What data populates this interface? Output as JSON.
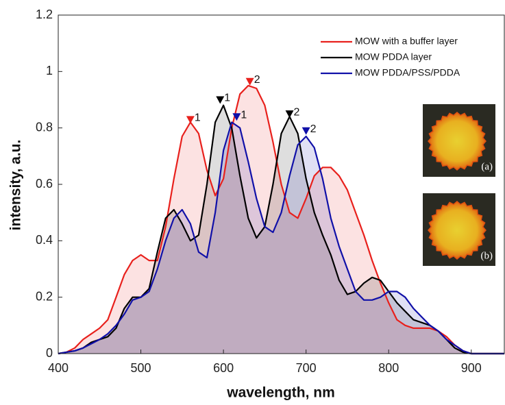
{
  "chart_data": {
    "type": "line",
    "x": [
      400,
      410,
      420,
      430,
      440,
      450,
      460,
      470,
      480,
      490,
      500,
      510,
      520,
      530,
      540,
      550,
      560,
      570,
      580,
      590,
      600,
      610,
      620,
      630,
      640,
      650,
      660,
      670,
      680,
      690,
      700,
      710,
      720,
      730,
      740,
      750,
      760,
      770,
      780,
      790,
      800,
      810,
      820,
      830,
      840,
      850,
      860,
      870,
      880,
      890,
      900,
      910,
      920,
      930,
      940
    ],
    "series": [
      {
        "name": "MOW with a buffer layer",
        "color": "#e8201c",
        "values": [
          0,
          0.005,
          0.02,
          0.05,
          0.07,
          0.09,
          0.12,
          0.2,
          0.28,
          0.33,
          0.35,
          0.33,
          0.33,
          0.45,
          0.62,
          0.77,
          0.82,
          0.78,
          0.65,
          0.56,
          0.62,
          0.8,
          0.92,
          0.95,
          0.94,
          0.88,
          0.75,
          0.6,
          0.5,
          0.48,
          0.55,
          0.63,
          0.66,
          0.66,
          0.63,
          0.58,
          0.5,
          0.42,
          0.33,
          0.25,
          0.18,
          0.12,
          0.1,
          0.09,
          0.09,
          0.09,
          0.08,
          0.06,
          0.03,
          0.01,
          0,
          0,
          0,
          0,
          0
        ]
      },
      {
        "name": "MOW PDDA layer",
        "color": "#000000",
        "values": [
          0,
          0.005,
          0.01,
          0.02,
          0.04,
          0.05,
          0.06,
          0.09,
          0.16,
          0.2,
          0.2,
          0.23,
          0.36,
          0.48,
          0.51,
          0.46,
          0.4,
          0.42,
          0.6,
          0.82,
          0.88,
          0.8,
          0.63,
          0.48,
          0.41,
          0.45,
          0.6,
          0.78,
          0.84,
          0.78,
          0.62,
          0.5,
          0.42,
          0.35,
          0.26,
          0.21,
          0.22,
          0.25,
          0.27,
          0.26,
          0.22,
          0.18,
          0.15,
          0.12,
          0.11,
          0.1,
          0.08,
          0.05,
          0.02,
          0.005,
          0,
          0,
          0,
          0,
          0
        ]
      },
      {
        "name": "MOW PDDA/PSS/PDDA",
        "color": "#1010a8",
        "values": [
          0,
          0.005,
          0.01,
          0.02,
          0.035,
          0.05,
          0.07,
          0.1,
          0.14,
          0.19,
          0.2,
          0.22,
          0.3,
          0.4,
          0.48,
          0.51,
          0.46,
          0.36,
          0.34,
          0.5,
          0.72,
          0.82,
          0.8,
          0.68,
          0.55,
          0.45,
          0.43,
          0.5,
          0.63,
          0.74,
          0.77,
          0.73,
          0.62,
          0.48,
          0.38,
          0.3,
          0.22,
          0.19,
          0.19,
          0.2,
          0.22,
          0.22,
          0.2,
          0.16,
          0.13,
          0.1,
          0.08,
          0.05,
          0.03,
          0.01,
          0,
          0,
          0,
          0,
          0
        ]
      }
    ],
    "annotations": [
      {
        "x": 560,
        "y": 0.83,
        "label": "1",
        "color": "#e8201c"
      },
      {
        "x": 632,
        "y": 0.965,
        "label": "2",
        "color": "#e8201c"
      },
      {
        "x": 596,
        "y": 0.9,
        "label": "1",
        "color": "#000000"
      },
      {
        "x": 680,
        "y": 0.85,
        "label": "2",
        "color": "#000000"
      },
      {
        "x": 616,
        "y": 0.84,
        "label": "1",
        "color": "#1010a8"
      },
      {
        "x": 700,
        "y": 0.79,
        "label": "2",
        "color": "#1010a8"
      }
    ],
    "xlabel": "wavelength, nm",
    "ylabel": "intensity, a.u.",
    "xlim": [
      400,
      940
    ],
    "ylim": [
      0,
      1.2
    ],
    "xticks": [
      400,
      500,
      600,
      700,
      800,
      900
    ],
    "yticks": [
      0,
      0.2,
      0.4,
      0.6,
      0.8,
      1,
      1.2
    ],
    "legend": "upper right",
    "insets": [
      "(a)",
      "(b)"
    ]
  }
}
